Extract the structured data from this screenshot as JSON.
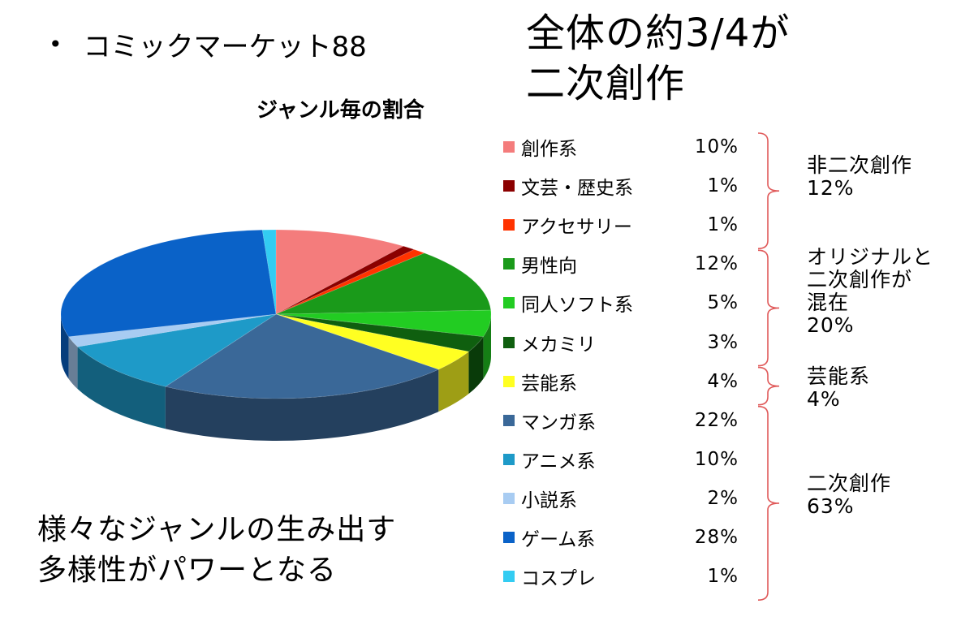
{
  "bullet": {
    "dot": "•",
    "text": "コミックマーケット88"
  },
  "headline": {
    "line1": "全体の約3/4が",
    "line2": "二次創作"
  },
  "tagline": {
    "line1": "様々なジャンルの生み出す",
    "line2": "多様性がパワーとなる"
  },
  "groups": [
    {
      "label_lines": [
        "非二次創作",
        "12%"
      ],
      "start": 0,
      "end": 2
    },
    {
      "label_lines": [
        "オリジナルと",
        "二次創作が",
        "混在",
        "20%"
      ],
      "start": 3,
      "end": 5
    },
    {
      "label_lines": [
        "芸能系",
        "4%"
      ],
      "start": 6,
      "end": 6
    },
    {
      "label_lines": [
        "二次創作",
        "63%"
      ],
      "start": 7,
      "end": 11
    }
  ],
  "bracket_color": "#e05a5a",
  "chart_data": {
    "type": "pie",
    "title": "ジャンル毎の割合",
    "categories": [
      "創作系",
      "文芸・歴史系",
      "アクセサリー",
      "男性向",
      "同人ソフト系",
      "メカミリ",
      "芸能系",
      "マンガ系",
      "アニメ系",
      "小説系",
      "ゲーム系",
      "コスプレ"
    ],
    "values": [
      10,
      1,
      1,
      12,
      5,
      3,
      4,
      22,
      10,
      2,
      28,
      1
    ],
    "value_labels": [
      "10%",
      "1%",
      "1%",
      "12%",
      "5%",
      "3%",
      "4%",
      "22%",
      "10%",
      "2%",
      "28%",
      "1%"
    ],
    "colors": [
      "#f47c7c",
      "#8b0000",
      "#ff3300",
      "#1a9a1a",
      "#22cc22",
      "#0f5f0f",
      "#ffff22",
      "#3a6898",
      "#1e9ac8",
      "#a8ccf2",
      "#0a62c8",
      "#33ccf2"
    ],
    "legend_position": "right",
    "style": "3d"
  }
}
